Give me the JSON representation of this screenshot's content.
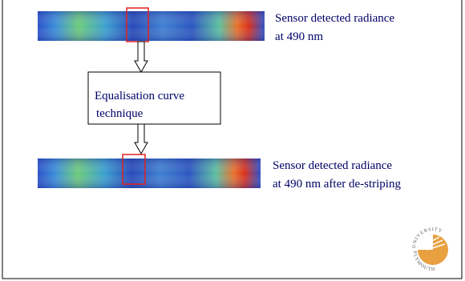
{
  "top_caption": {
    "lines": [
      "Sensor detected radiance",
      "at 490 nm"
    ]
  },
  "process_box": {
    "lines": [
      "Equalisation curve",
      "technique"
    ]
  },
  "bottom_caption": {
    "lines": [
      "Sensor detected radiance",
      "at 490 nm  after de-striping"
    ]
  },
  "logo": {
    "top": "UNIVERSITY",
    "bottom": "PLYMOUTH"
  }
}
